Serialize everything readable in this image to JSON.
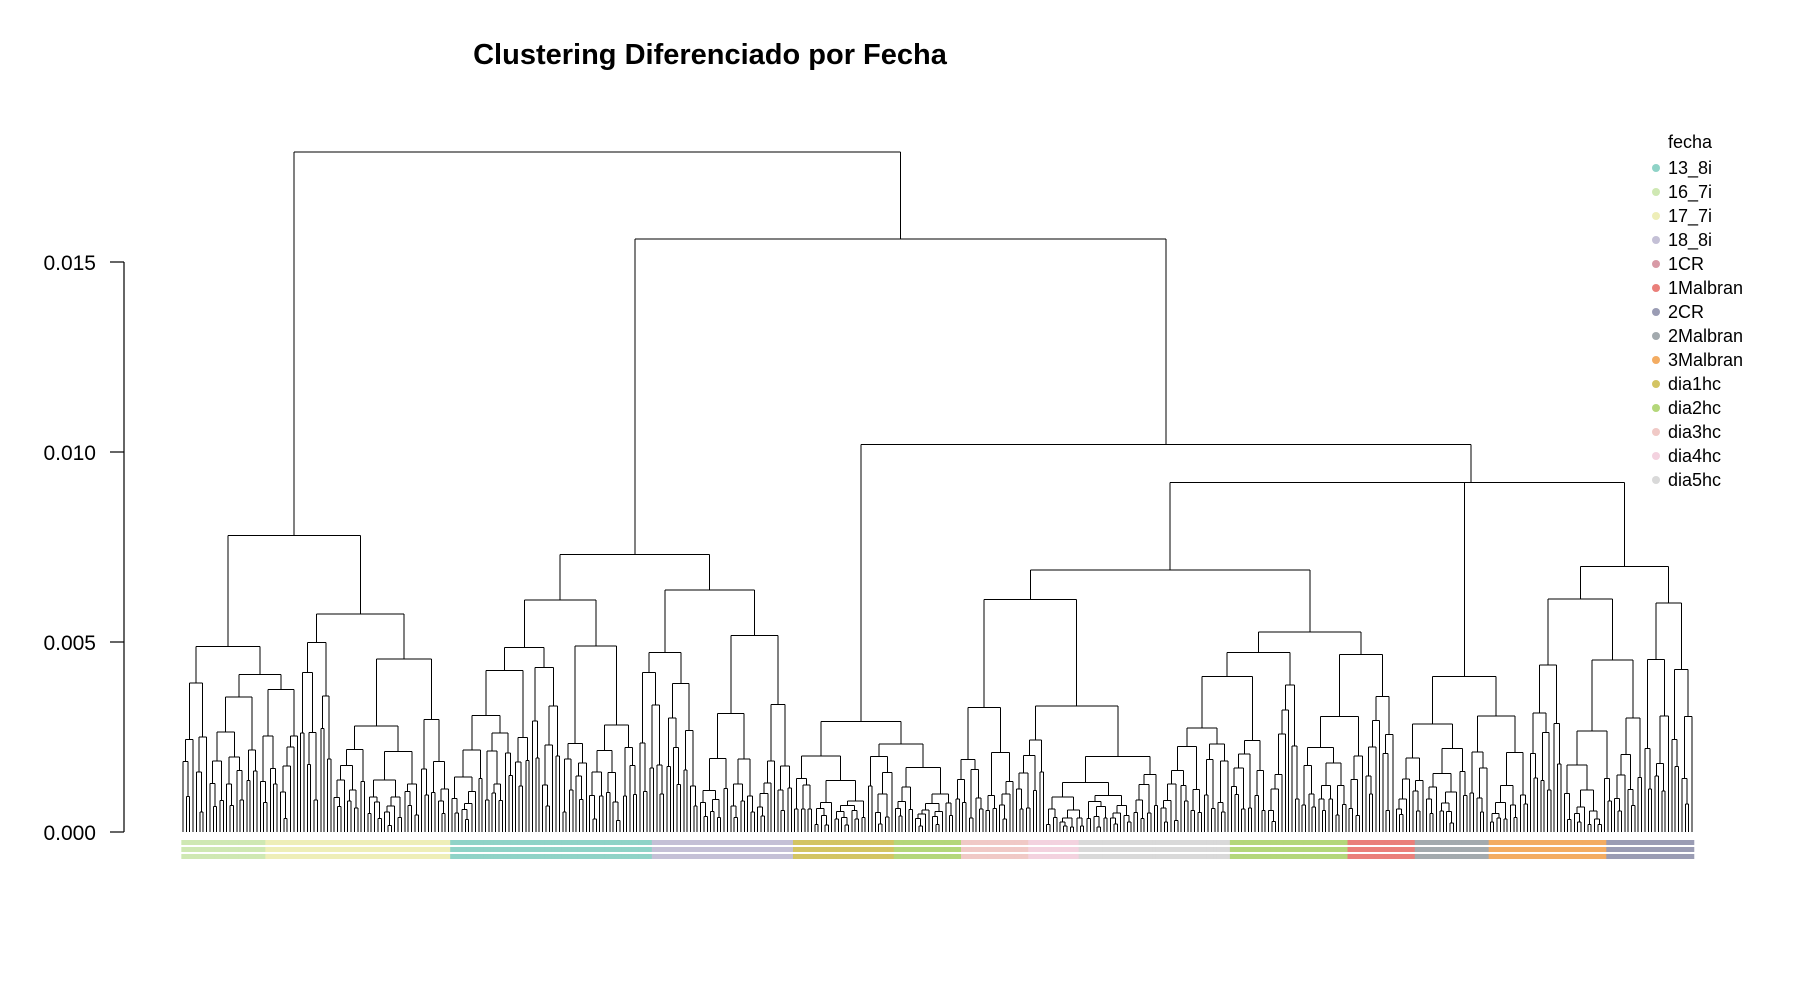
{
  "chart_data": {
    "type": "dendrogram",
    "title": "Clustering Diferenciado por Fecha",
    "xlabel": "",
    "ylabel": "",
    "ylim": [
      0,
      0.018
    ],
    "y_ticks": [
      {
        "value": 0.0,
        "label": "0.000"
      },
      {
        "value": 0.005,
        "label": "0.005"
      },
      {
        "value": 0.01,
        "label": "0.010"
      },
      {
        "value": 0.015,
        "label": "0.015"
      }
    ],
    "legend": {
      "title": "fecha",
      "position": "top-right",
      "items": [
        {
          "label": "13_8i",
          "color": "#8fd3c7"
        },
        {
          "label": "16_7i",
          "color": "#cfe8b3"
        },
        {
          "label": "17_7i",
          "color": "#eeeeb8"
        },
        {
          "label": "18_8i",
          "color": "#c4c0d6"
        },
        {
          "label": "1CR",
          "color": "#d89aa6"
        },
        {
          "label": "1Malbran",
          "color": "#ea7f7a"
        },
        {
          "label": "2CR",
          "color": "#9a9cb4"
        },
        {
          "label": "2Malbran",
          "color": "#a3aaae"
        },
        {
          "label": "3Malbran",
          "color": "#f3ac62"
        },
        {
          "label": "dia1hc",
          "color": "#d3c463"
        },
        {
          "label": "dia2hc",
          "color": "#b4d77a"
        },
        {
          "label": "dia3hc",
          "color": "#f0c9c6"
        },
        {
          "label": "dia4hc",
          "color": "#f3d2df"
        },
        {
          "label": "dia5hc",
          "color": "#d9d9d9"
        }
      ]
    },
    "top_merges": [
      {
        "height": 0.0179,
        "description": "root"
      },
      {
        "height": 0.0156
      },
      {
        "height": 0.0102
      },
      {
        "height": 0.0092
      },
      {
        "height": 0.0078
      },
      {
        "height": 0.0076
      },
      {
        "height": 0.0073
      },
      {
        "height": 0.007
      },
      {
        "height": 0.0069
      },
      {
        "height": 0.0067
      },
      {
        "height": 0.0063
      },
      {
        "height": 0.0061
      },
      {
        "height": 0.0061
      }
    ],
    "leaf_groups_order": [
      {
        "label": "16_7i",
        "count": 25
      },
      {
        "label": "17_7i",
        "count": 55
      },
      {
        "label": "13_8i",
        "count": 60
      },
      {
        "label": "18_8i",
        "count": 42
      },
      {
        "label": "dia1hc",
        "count": 30
      },
      {
        "label": "dia2hc",
        "count": 20
      },
      {
        "label": "dia3hc",
        "count": 20
      },
      {
        "label": "dia4hc",
        "count": 15
      },
      {
        "label": "dia5hc",
        "count": 45
      },
      {
        "label": "dia2hc",
        "count": 35
      },
      {
        "label": "1Malbran",
        "count": 20
      },
      {
        "label": "2Malbran",
        "count": 22
      },
      {
        "label": "3Malbran",
        "count": 35
      },
      {
        "label": "2CR",
        "count": 26
      }
    ]
  }
}
